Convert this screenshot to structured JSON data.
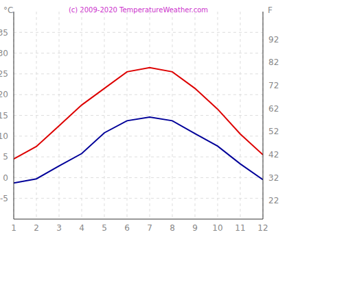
{
  "chart_data": {
    "type": "line",
    "title": "(c) 2009-2020 TemperatureWeather.com",
    "y_label": "°C",
    "y2_label": "F",
    "x": [
      1,
      2,
      3,
      4,
      5,
      6,
      7,
      8,
      9,
      10,
      11,
      12
    ],
    "series": [
      {
        "color": "#dd0000",
        "values": [
          4.5,
          7.5,
          12.5,
          17.5,
          21.5,
          25.5,
          26.5,
          25.5,
          21.5,
          16.5,
          10.5,
          5.5
        ]
      },
      {
        "color": "#000099",
        "values": [
          -1.3,
          -0.3,
          2.8,
          5.8,
          10.8,
          13.7,
          14.6,
          13.7,
          10.6,
          7.6,
          3.3,
          -0.5
        ]
      }
    ],
    "xlim": [
      1,
      12
    ],
    "xticks": [
      1,
      2,
      3,
      4,
      5,
      6,
      7,
      8,
      9,
      10,
      11,
      12
    ],
    "ylim": [
      -10,
      40
    ],
    "yticks": [
      -5,
      0,
      5,
      10,
      15,
      20,
      25,
      30,
      35
    ],
    "y2lim": [
      14,
      104
    ],
    "y2ticks": [
      22,
      32,
      42,
      52,
      62,
      72,
      82,
      92
    ],
    "grid": true
  }
}
